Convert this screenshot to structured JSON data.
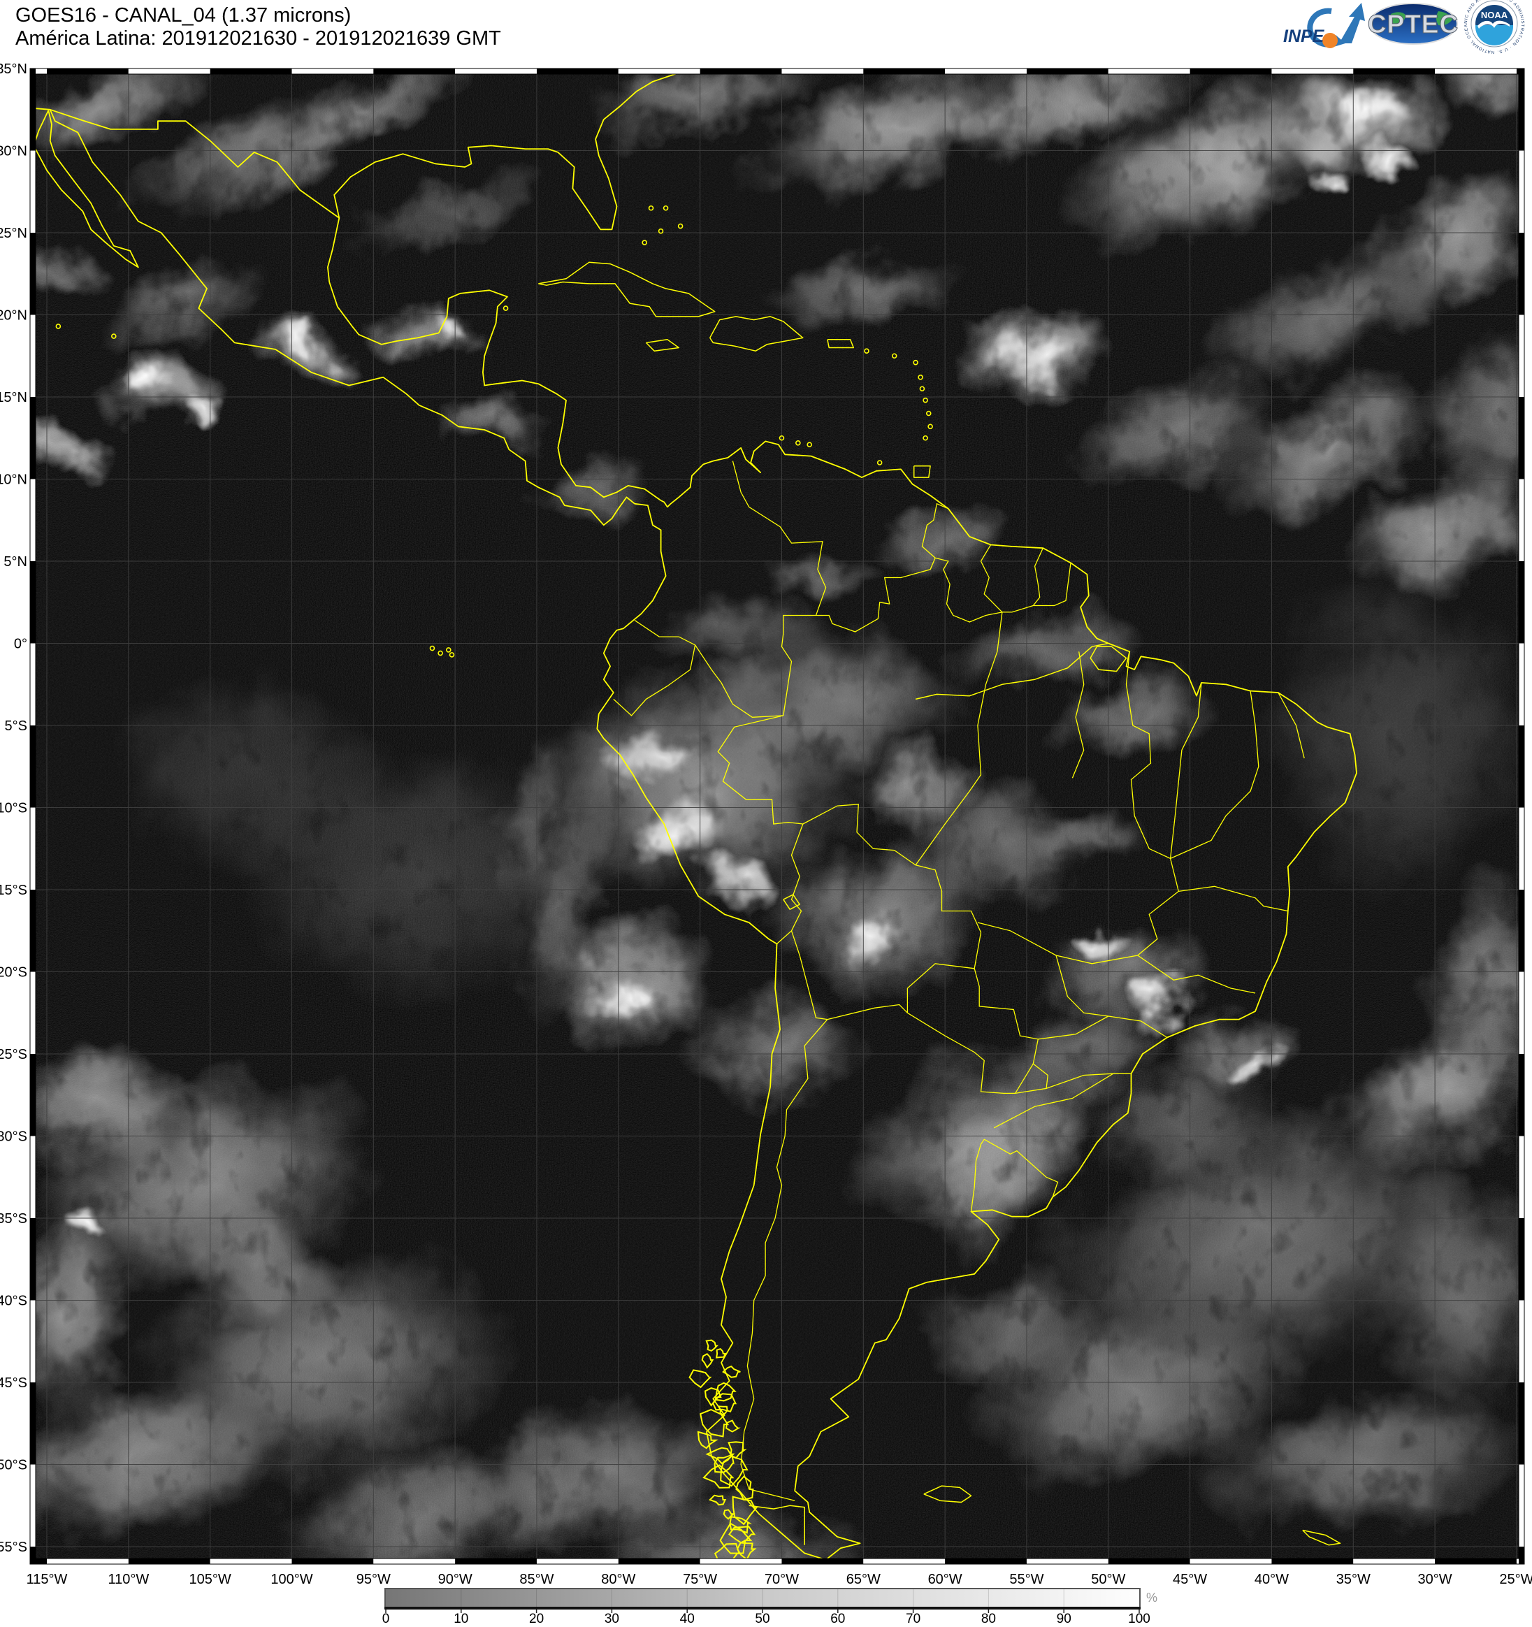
{
  "header": {
    "title_line1": "GOES16 - CANAL_04 (1.37 microns)",
    "title_line2": "América Latina: 201912021630 - 201912021639 GMT"
  },
  "logos": {
    "inpe_label": "INPE",
    "cptec_label": "CPTEC",
    "noaa_label": "NOAA"
  },
  "map": {
    "lat_tick_labels": [
      "35°N",
      "30°N",
      "25°N",
      "20°N",
      "15°N",
      "10°N",
      "5°N",
      "0°",
      "5°S",
      "10°S",
      "15°S",
      "20°S",
      "25°S",
      "30°S",
      "35°S",
      "40°S",
      "45°S",
      "50°S",
      "55°S"
    ],
    "lon_tick_labels": [
      "115°W",
      "110°W",
      "105°W",
      "100°W",
      "95°W",
      "90°W",
      "85°W",
      "80°W",
      "75°W",
      "70°W",
      "65°W",
      "60°W",
      "55°W",
      "50°W",
      "45°W",
      "40°W",
      "35°W",
      "30°W",
      "25°W"
    ],
    "coastline_color": "#ffff00",
    "ocean_color": "#000000",
    "gridline_color": "#404040"
  },
  "colorbar": {
    "tick_labels": [
      "0",
      "10",
      "20",
      "30",
      "40",
      "50",
      "60",
      "70",
      "80",
      "90",
      "100"
    ],
    "unit_label": "%",
    "min_color": "#767676",
    "max_color": "#fefefe"
  }
}
